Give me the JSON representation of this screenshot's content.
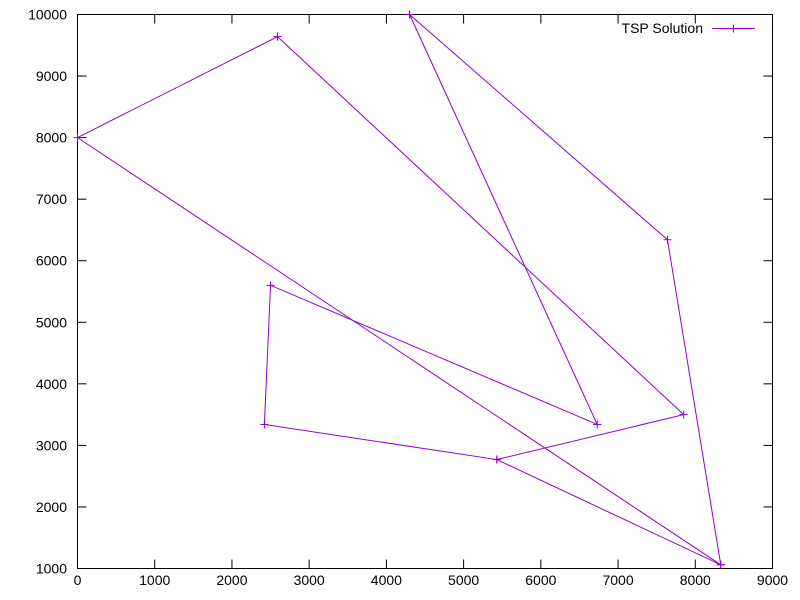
{
  "chart_data": {
    "type": "line",
    "title": "",
    "xlabel": "",
    "ylabel": "",
    "xlim": [
      0,
      9000
    ],
    "ylim": [
      1000,
      10000
    ],
    "xticks": [
      0,
      1000,
      2000,
      3000,
      4000,
      5000,
      6000,
      7000,
      8000,
      9000
    ],
    "yticks": [
      1000,
      2000,
      3000,
      4000,
      5000,
      6000,
      7000,
      8000,
      9000,
      10000
    ],
    "grid": false,
    "legend": {
      "position": "top-right"
    },
    "colors": {
      "series": "#9400d3",
      "axis": "#000000"
    },
    "series": [
      {
        "name": "TSP Solution",
        "marker": "plus",
        "x": [
          4300,
          7640,
          8330,
          5430,
          2420,
          2500,
          6730,
          4300
        ],
        "y": [
          10000,
          6340,
          1060,
          2770,
          3340,
          5600,
          3340,
          10000
        ]
      },
      {
        "x": [
          8330,
          0,
          2590,
          7850,
          5430
        ],
        "y": [
          1060,
          8000,
          9640,
          3500,
          2770
        ]
      }
    ]
  }
}
